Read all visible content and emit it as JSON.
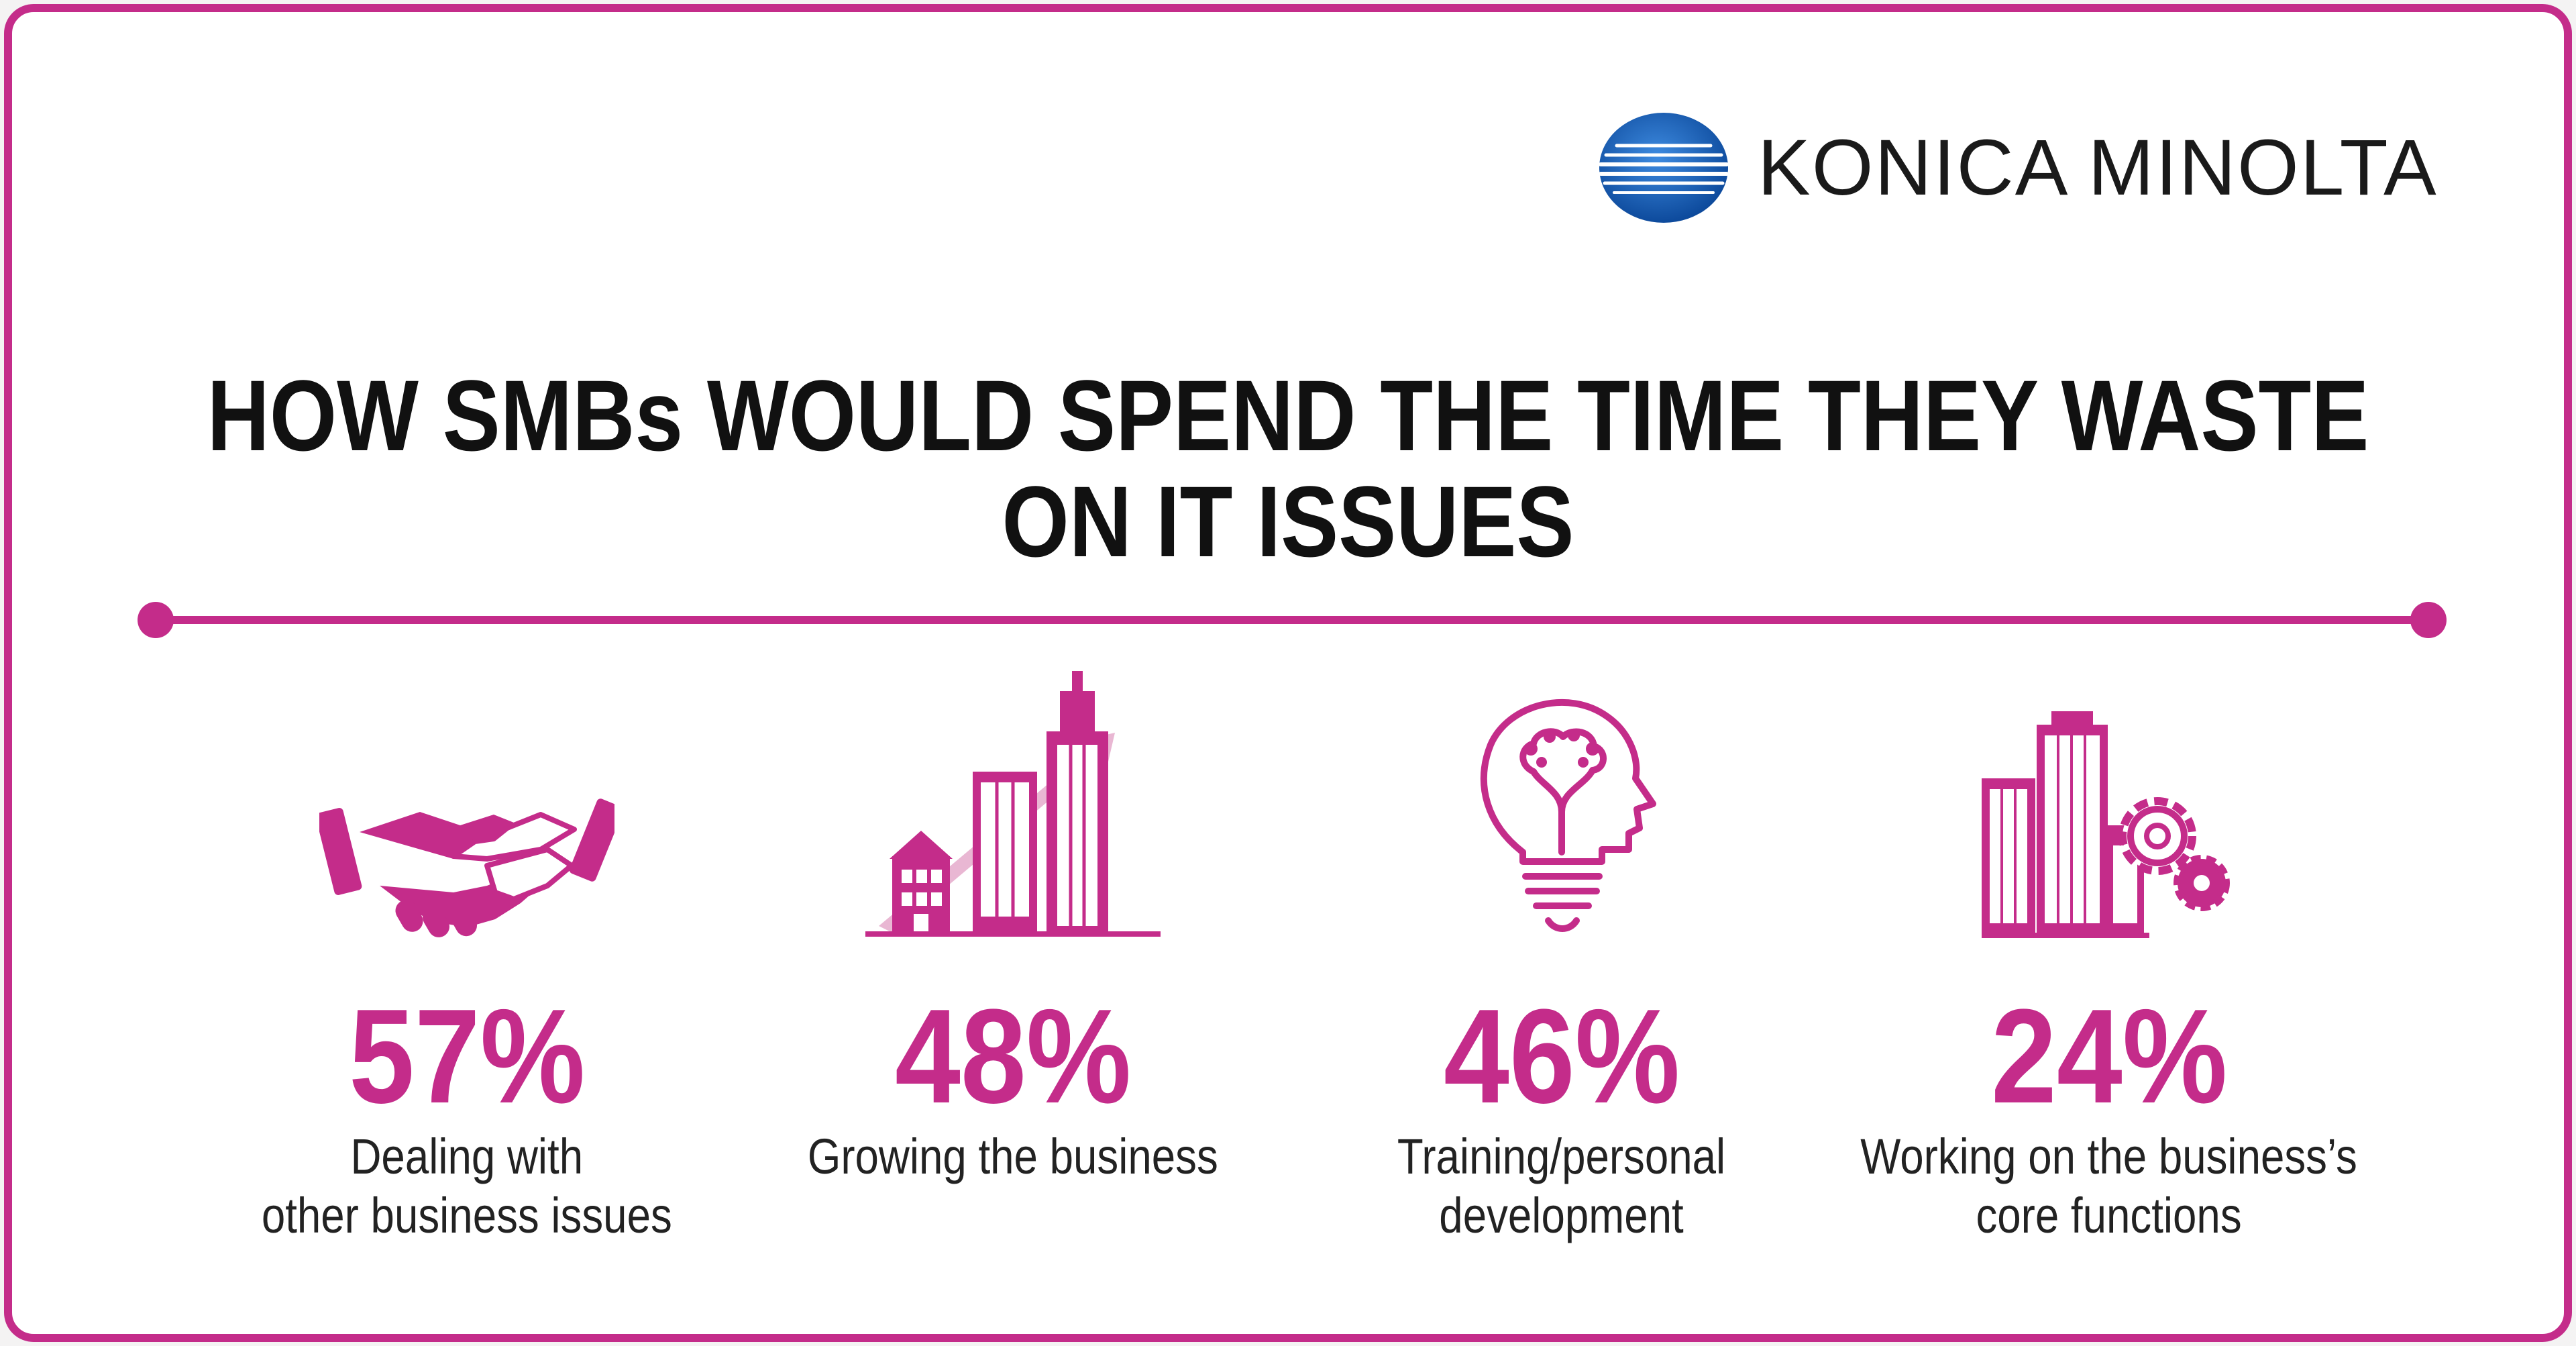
{
  "brand": {
    "name": "KONICA MINOLTA",
    "accent": "#c42c8a",
    "logo_color": "#1f63b8"
  },
  "title": {
    "line1": "HOW SMBs WOULD SPEND THE TIME THEY WASTE",
    "line2": "ON IT ISSUES"
  },
  "stats": [
    {
      "icon": "handshake-icon",
      "value": "57%",
      "label_line1": "Dealing with",
      "label_line2": "other business issues"
    },
    {
      "icon": "growing-buildings-icon",
      "value": "48%",
      "label_line1": "Growing the business",
      "label_line2": ""
    },
    {
      "icon": "lightbulb-head-icon",
      "value": "46%",
      "label_line1": "Training/personal",
      "label_line2": "development"
    },
    {
      "icon": "buildings-gears-icon",
      "value": "24%",
      "label_line1": "Working on the business’s",
      "label_line2": "core functions"
    }
  ]
}
